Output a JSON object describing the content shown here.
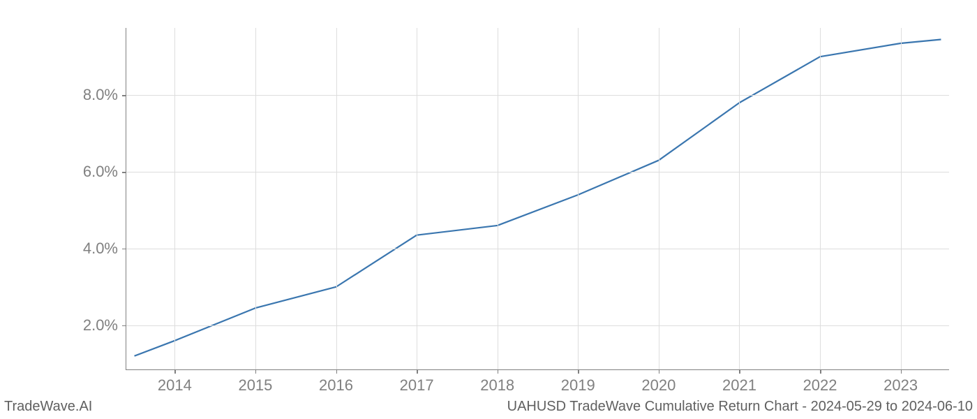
{
  "chart": {
    "type": "line",
    "x_values": [
      2013.5,
      2014,
      2015,
      2016,
      2017,
      2018,
      2019,
      2020,
      2021,
      2022,
      2023,
      2023.5
    ],
    "y_values": [
      1.2,
      1.6,
      2.45,
      3.0,
      4.35,
      4.6,
      5.4,
      6.3,
      7.8,
      9.0,
      9.35,
      9.45
    ],
    "x_ticks": [
      2014,
      2015,
      2016,
      2017,
      2018,
      2019,
      2020,
      2021,
      2022,
      2023
    ],
    "x_tick_labels": [
      "2014",
      "2015",
      "2016",
      "2017",
      "2018",
      "2019",
      "2020",
      "2021",
      "2022",
      "2023"
    ],
    "y_ticks": [
      2.0,
      4.0,
      6.0,
      8.0
    ],
    "y_tick_labels": [
      "2.0%",
      "4.0%",
      "6.0%",
      "8.0%"
    ],
    "xlim": [
      2013.4,
      2023.6
    ],
    "ylim": [
      0.85,
      9.75
    ],
    "line_color": "#3a76af",
    "line_width": 2.2,
    "grid_color": "#dddddd",
    "axis_color": "#808080",
    "tick_label_color": "#808080",
    "tick_fontsize": 22,
    "background_color": "#ffffff"
  },
  "footer": {
    "left": "TradeWave.AI",
    "right": "UAHUSD TradeWave Cumulative Return Chart - 2024-05-29 to 2024-06-10",
    "fontsize": 20,
    "color": "#606060"
  }
}
